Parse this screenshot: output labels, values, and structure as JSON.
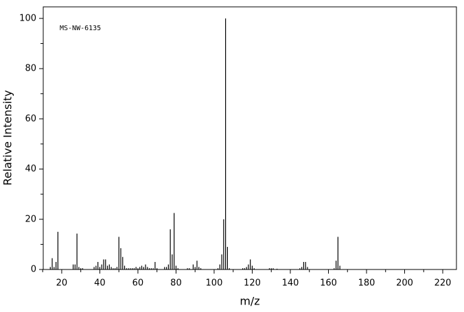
{
  "chart_data": {
    "type": "spectrum",
    "annotation": "MS-NW-6135",
    "x_label": "m/z",
    "y_label": "Relative Intensity",
    "color": "#000000",
    "xlim": [
      10.3,
      227.2
    ],
    "ylim": [
      0,
      104.6
    ],
    "xticks": [
      20,
      40,
      60,
      80,
      100,
      120,
      140,
      160,
      180,
      200,
      220
    ],
    "xminorticks": [
      10,
      30,
      50,
      70,
      90,
      110,
      130,
      150,
      170,
      190,
      210
    ],
    "yticks": [
      0,
      20,
      40,
      60,
      80,
      100
    ],
    "yminorticks": [
      10,
      30,
      50,
      70,
      90
    ],
    "x": [
      14,
      15,
      16,
      17,
      18,
      26,
      27,
      28,
      29,
      30,
      31,
      37,
      38,
      39,
      40,
      41,
      42,
      43,
      44,
      45,
      46,
      47,
      48,
      49,
      50,
      51,
      52,
      53,
      54,
      55,
      56,
      57,
      58,
      59,
      60,
      61,
      62,
      63,
      64,
      65,
      66,
      67,
      68,
      69,
      70,
      74,
      75,
      76,
      77,
      78,
      79,
      80,
      81,
      86,
      87,
      89,
      90,
      91,
      92,
      93,
      102,
      103,
      104,
      105,
      106,
      107,
      108,
      115,
      116,
      117,
      118,
      119,
      120,
      121,
      129,
      130,
      131,
      133,
      145,
      146,
      147,
      148,
      149,
      163,
      164,
      165,
      166
    ],
    "values": [
      1,
      4.5,
      1,
      3,
      15,
      2,
      2,
      14.3,
      1,
      0.5,
      0.5,
      1,
      1.5,
      3,
      1,
      2,
      4,
      4,
      1.5,
      2,
      1,
      0.5,
      0.5,
      1,
      13,
      8.5,
      5,
      1.5,
      0.5,
      0.5,
      0.5,
      0.5,
      0.5,
      1,
      0.5,
      1,
      1.5,
      1,
      2,
      1,
      0.5,
      0.5,
      0.5,
      3,
      0.5,
      1,
      1,
      2,
      16,
      6,
      22.5,
      1.5,
      0.5,
      0.5,
      0.5,
      2,
      1,
      3.5,
      1,
      0.5,
      0.5,
      2,
      6,
      20,
      100,
      9,
      0.5,
      0.5,
      0.5,
      1,
      2,
      4,
      1.5,
      0.5,
      0.5,
      0.5,
      0.5,
      0.3,
      0.5,
      1,
      3,
      3,
      1,
      0.5,
      3.5,
      13,
      1.5
    ]
  }
}
